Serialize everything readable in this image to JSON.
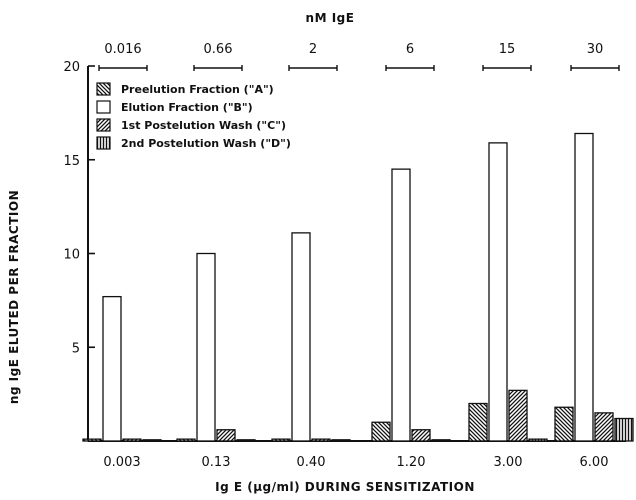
{
  "chart_data": {
    "type": "bar",
    "title": "",
    "top_axis": {
      "label": "nM IgE",
      "ticks": [
        "0.016",
        "0.66",
        "2",
        "6",
        "15",
        "30"
      ]
    },
    "xlabel": "Ig E (μg/ml) DURING SENSITIZATION",
    "ylabel": "ng IgE ELUTED PER FRACTION",
    "categories": [
      "0.003",
      "0.13",
      "0.40",
      "1.20",
      "3.00",
      "6.00"
    ],
    "ylim": [
      0,
      20
    ],
    "yticks": [
      5,
      10,
      15,
      20
    ],
    "series": [
      {
        "name": "Preelution Fraction (\"A\")",
        "pattern": "backhatch",
        "values": [
          0.1,
          0.1,
          0.1,
          1.0,
          2.0,
          1.8
        ]
      },
      {
        "name": "Elution Fraction (\"B\")",
        "pattern": "open",
        "values": [
          7.7,
          10.0,
          11.1,
          14.5,
          15.9,
          16.4
        ]
      },
      {
        "name": "1st Postelution Wash (\"C\")",
        "pattern": "forwardhatch",
        "values": [
          0.1,
          0.6,
          0.1,
          0.6,
          2.7,
          1.5
        ]
      },
      {
        "name": "2nd Postelution Wash (\"D\")",
        "pattern": "vertical",
        "values": [
          0.05,
          0.05,
          0.05,
          0.05,
          0.1,
          1.2
        ]
      }
    ],
    "legend_position": "top-left",
    "grid": false
  }
}
